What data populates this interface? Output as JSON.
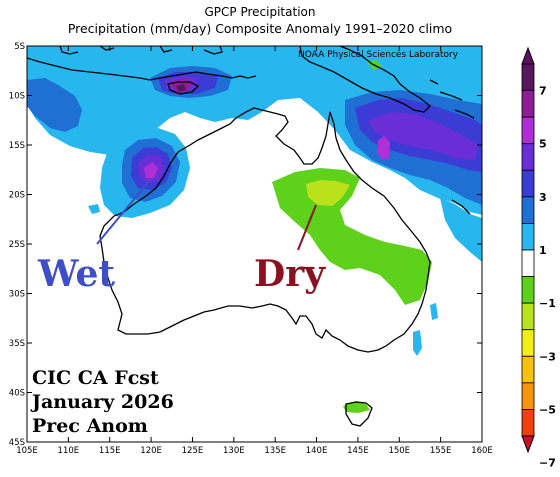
{
  "titles": {
    "line1": "GPCP Precipitation",
    "line2": "Precipitation (mm/day) Composite Anomaly 1991–2020 climo",
    "credit": "NOAA Physical Sciences Laboratory"
  },
  "map": {
    "lon_range": [
      105,
      160
    ],
    "lat_range": [
      -45,
      -5
    ],
    "lon_ticks": [
      "105E",
      "110E",
      "115E",
      "120E",
      "125E",
      "130E",
      "135E",
      "140E",
      "145E",
      "150E",
      "155E",
      "160E"
    ],
    "lat_ticks": [
      "5S",
      "10S",
      "15S",
      "20S",
      "25S",
      "30S",
      "35S",
      "40S",
      "45S"
    ]
  },
  "annotations": {
    "wet": "Wet",
    "dry": "Dry",
    "forecast_line1": "CIC CA Fcst",
    "forecast_line2": "January 2026",
    "forecast_line3": "Prec Anom"
  },
  "colorbar": {
    "labels": [
      "7",
      "5",
      "3",
      "1",
      "−1",
      "−3",
      "−5",
      "−7"
    ],
    "colors": {
      "c7": "#5a1560",
      "c6": "#8e1e97",
      "c5": "#b12fd6",
      "c4": "#6a2ed6",
      "c3": "#3b3bd6",
      "c2": "#1f6fd4",
      "c1": "#27b7ee",
      "c0": "#ffffff",
      "d1": "#5ed21a",
      "d2": "#b9e21d",
      "d3": "#f4ee14",
      "d4": "#f6c00e",
      "d5": "#f5940d",
      "d6": "#f0410d"
    }
  },
  "colors": {
    "wet_text": "#3d4ec8",
    "dry_text": "#8b1120",
    "land_outline": "#000000"
  }
}
